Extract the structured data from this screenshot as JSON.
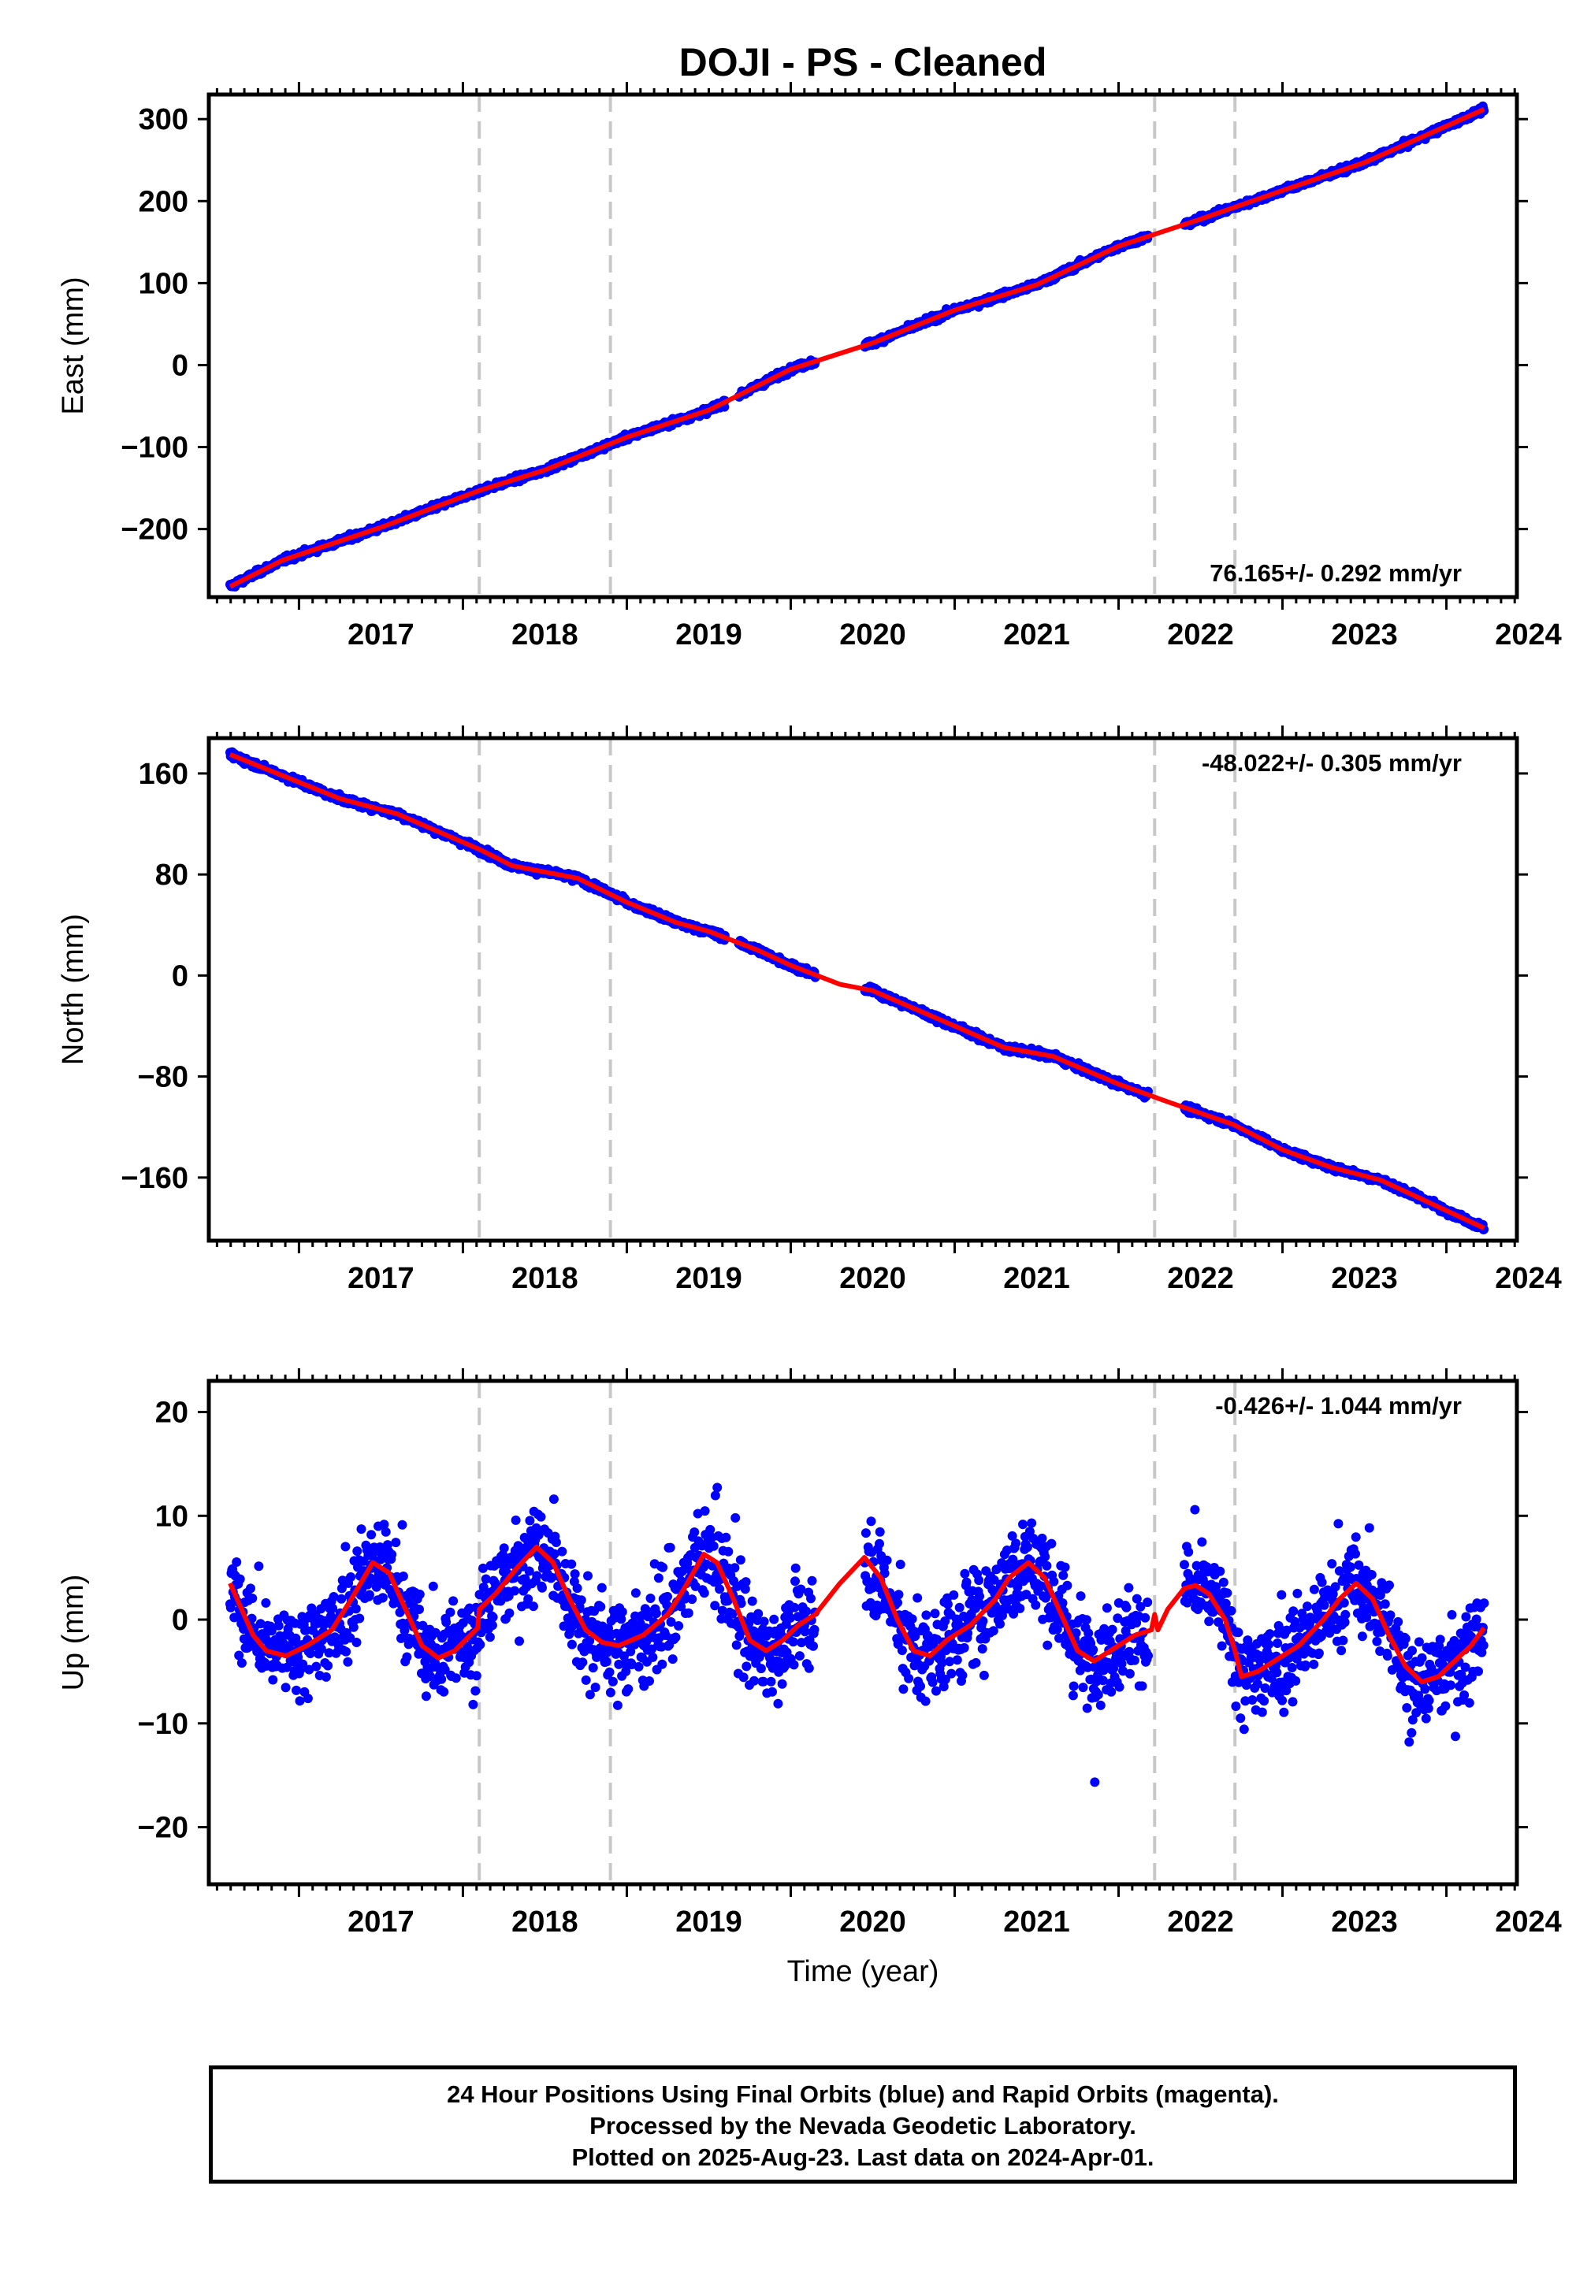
{
  "title": "DOJI  - PS - Cleaned",
  "xlabel": "Time (year)",
  "footer": {
    "line1": "24 Hour Positions Using Final Orbits (blue) and Rapid Orbits (magenta).",
    "line2": "Processed by the Nevada Geodetic Laboratory.",
    "line3": "Plotted on 2025-Aug-23. Last data on 2024-Apr-01."
  },
  "colors": {
    "data": "#0000ff",
    "fit": "#ff0000",
    "event_line": "#c8c8c8",
    "axis": "#000000"
  },
  "chart_data": [
    {
      "type": "scatter",
      "component": "East",
      "ylabel": "East (mm)",
      "velocity_label": "76.165+/- 0.292 mm/yr",
      "velocity_label_position": "bottom-right",
      "xlim": [
        2016.45,
        2024.43
      ],
      "ylim": [
        -283,
        330
      ],
      "yticks": [
        300,
        200,
        100,
        0,
        -100,
        -200
      ],
      "ytick_labels": [
        "300",
        "200",
        "100",
        "0",
        "−100",
        "−200"
      ],
      "xticks": [
        2017,
        2018,
        2019,
        2020,
        2021,
        2022,
        2023,
        2024
      ],
      "event_lines": [
        2018.1,
        2018.9,
        2022.22,
        2022.71
      ],
      "gaps": [
        [
          2019.6,
          2019.68
        ],
        [
          2020.15,
          2020.45
        ],
        [
          2022.18,
          2022.4
        ]
      ],
      "fit_breakpoints": [
        {
          "x": 2016.58,
          "y": -270
        },
        {
          "x": 2016.9,
          "y": -238
        },
        {
          "x": 2017.5,
          "y": -198
        },
        {
          "x": 2018.1,
          "y": -153
        },
        {
          "x": 2018.5,
          "y": -128
        },
        {
          "x": 2019.0,
          "y": -88
        },
        {
          "x": 2019.5,
          "y": -55
        },
        {
          "x": 2020.0,
          "y": -5
        },
        {
          "x": 2020.5,
          "y": 27
        },
        {
          "x": 2021.0,
          "y": 67
        },
        {
          "x": 2021.5,
          "y": 98
        },
        {
          "x": 2022.0,
          "y": 145
        },
        {
          "x": 2022.5,
          "y": 178
        },
        {
          "x": 2023.0,
          "y": 213
        },
        {
          "x": 2023.5,
          "y": 247
        },
        {
          "x": 2024.23,
          "y": 312
        }
      ],
      "noise_mm": 2.5,
      "seasonal_amp_mm": 0
    },
    {
      "type": "scatter",
      "component": "North",
      "ylabel": "North (mm)",
      "velocity_label": "-48.022+/- 0.305 mm/yr",
      "velocity_label_position": "top-right",
      "xlim": [
        2016.45,
        2024.43
      ],
      "ylim": [
        -210,
        188
      ],
      "yticks": [
        160,
        80,
        0,
        -80,
        -160
      ],
      "ytick_labels": [
        "160",
        "80",
        "0",
        "−80",
        "−160"
      ],
      "xticks": [
        2017,
        2018,
        2019,
        2020,
        2021,
        2022,
        2023,
        2024
      ],
      "event_lines": [
        2018.1,
        2018.9,
        2022.22,
        2022.71
      ],
      "gaps": [
        [
          2019.6,
          2019.68
        ],
        [
          2020.15,
          2020.45
        ],
        [
          2022.18,
          2022.4
        ]
      ],
      "fit_breakpoints": [
        {
          "x": 2016.58,
          "y": 175
        },
        {
          "x": 2017.25,
          "y": 140
        },
        {
          "x": 2017.6,
          "y": 128
        },
        {
          "x": 2018.1,
          "y": 100
        },
        {
          "x": 2018.3,
          "y": 87
        },
        {
          "x": 2018.7,
          "y": 77
        },
        {
          "x": 2019.0,
          "y": 58
        },
        {
          "x": 2019.3,
          "y": 42
        },
        {
          "x": 2019.5,
          "y": 35
        },
        {
          "x": 2019.8,
          "y": 20
        },
        {
          "x": 2020.0,
          "y": 8
        },
        {
          "x": 2020.3,
          "y": -7
        },
        {
          "x": 2020.5,
          "y": -12
        },
        {
          "x": 2021.0,
          "y": -40
        },
        {
          "x": 2021.3,
          "y": -57
        },
        {
          "x": 2021.6,
          "y": -64
        },
        {
          "x": 2022.0,
          "y": -86
        },
        {
          "x": 2022.3,
          "y": -100
        },
        {
          "x": 2022.7,
          "y": -118
        },
        {
          "x": 2023.0,
          "y": -138
        },
        {
          "x": 2023.3,
          "y": -152
        },
        {
          "x": 2023.6,
          "y": -162
        },
        {
          "x": 2024.23,
          "y": -200
        }
      ],
      "noise_mm": 1.8,
      "seasonal_amp_mm": 0
    },
    {
      "type": "scatter",
      "component": "Up",
      "ylabel": "Up (mm)",
      "velocity_label": "-0.426+/- 1.044 mm/yr",
      "velocity_label_position": "top-right",
      "xlim": [
        2016.45,
        2024.43
      ],
      "ylim": [
        -25.5,
        23
      ],
      "yticks": [
        20,
        10,
        0,
        -10,
        -20
      ],
      "ytick_labels": [
        "20",
        "10",
        "0",
        "−10",
        "−20"
      ],
      "xticks": [
        2017,
        2018,
        2019,
        2020,
        2021,
        2022,
        2023,
        2024
      ],
      "event_lines": [
        2018.1,
        2018.9,
        2022.22,
        2022.71
      ],
      "gaps": [
        [
          2020.15,
          2020.45
        ],
        [
          2022.18,
          2022.4
        ]
      ],
      "fit_points": [
        {
          "x": 2016.58,
          "y": 3.5
        },
        {
          "x": 2016.65,
          "y": 1
        },
        {
          "x": 2016.72,
          "y": -1.5
        },
        {
          "x": 2016.8,
          "y": -3
        },
        {
          "x": 2016.92,
          "y": -3.5
        },
        {
          "x": 2017.05,
          "y": -2.5
        },
        {
          "x": 2017.2,
          "y": -1
        },
        {
          "x": 2017.32,
          "y": 2
        },
        {
          "x": 2017.45,
          "y": 5.5
        },
        {
          "x": 2017.55,
          "y": 4.5
        },
        {
          "x": 2017.65,
          "y": 1
        },
        {
          "x": 2017.75,
          "y": -2.5
        },
        {
          "x": 2017.85,
          "y": -3.7
        },
        {
          "x": 2017.95,
          "y": -3
        },
        {
          "x": 2018.09,
          "y": -0.8
        },
        {
          "x": 2018.1,
          "y": 1
        },
        {
          "x": 2018.2,
          "y": 2.5
        },
        {
          "x": 2018.33,
          "y": 5
        },
        {
          "x": 2018.45,
          "y": 7
        },
        {
          "x": 2018.55,
          "y": 5.5
        },
        {
          "x": 2018.65,
          "y": 2
        },
        {
          "x": 2018.75,
          "y": -1
        },
        {
          "x": 2018.85,
          "y": -2.2
        },
        {
          "x": 2018.95,
          "y": -2.5
        },
        {
          "x": 2019.1,
          "y": -1.5
        },
        {
          "x": 2019.25,
          "y": 0.5
        },
        {
          "x": 2019.35,
          "y": 3
        },
        {
          "x": 2019.47,
          "y": 6.3
        },
        {
          "x": 2019.55,
          "y": 5.5
        },
        {
          "x": 2019.65,
          "y": 2
        },
        {
          "x": 2019.75,
          "y": -2
        },
        {
          "x": 2019.85,
          "y": -3
        },
        {
          "x": 2019.95,
          "y": -2
        },
        {
          "x": 2020.05,
          "y": -0.5
        },
        {
          "x": 2020.15,
          "y": 0.5
        },
        {
          "x": 2020.3,
          "y": 3.5
        },
        {
          "x": 2020.45,
          "y": 6
        },
        {
          "x": 2020.55,
          "y": 4
        },
        {
          "x": 2020.65,
          "y": 0
        },
        {
          "x": 2020.75,
          "y": -3
        },
        {
          "x": 2020.85,
          "y": -3.5
        },
        {
          "x": 2020.95,
          "y": -2
        },
        {
          "x": 2021.1,
          "y": -0.5
        },
        {
          "x": 2021.25,
          "y": 2
        },
        {
          "x": 2021.33,
          "y": 4
        },
        {
          "x": 2021.45,
          "y": 5.5
        },
        {
          "x": 2021.55,
          "y": 4
        },
        {
          "x": 2021.65,
          "y": 0.5
        },
        {
          "x": 2021.75,
          "y": -3
        },
        {
          "x": 2021.85,
          "y": -4
        },
        {
          "x": 2021.95,
          "y": -3
        },
        {
          "x": 2022.1,
          "y": -1.5
        },
        {
          "x": 2022.2,
          "y": -1
        },
        {
          "x": 2022.22,
          "y": 0.5
        },
        {
          "x": 2022.24,
          "y": -1
        },
        {
          "x": 2022.3,
          "y": 1
        },
        {
          "x": 2022.4,
          "y": 3
        },
        {
          "x": 2022.47,
          "y": 3.3
        },
        {
          "x": 2022.55,
          "y": 2.5
        },
        {
          "x": 2022.65,
          "y": 0
        },
        {
          "x": 2022.71,
          "y": -3
        },
        {
          "x": 2022.75,
          "y": -5.5
        },
        {
          "x": 2022.85,
          "y": -5
        },
        {
          "x": 2022.95,
          "y": -4
        },
        {
          "x": 2023.1,
          "y": -2.5
        },
        {
          "x": 2023.25,
          "y": 0
        },
        {
          "x": 2023.35,
          "y": 2
        },
        {
          "x": 2023.45,
          "y": 3.5
        },
        {
          "x": 2023.55,
          "y": 2
        },
        {
          "x": 2023.65,
          "y": -1.5
        },
        {
          "x": 2023.75,
          "y": -4.5
        },
        {
          "x": 2023.85,
          "y": -6
        },
        {
          "x": 2023.95,
          "y": -5.5
        },
        {
          "x": 2024.05,
          "y": -4
        },
        {
          "x": 2024.15,
          "y": -2.5
        },
        {
          "x": 2024.23,
          "y": -0.8
        }
      ],
      "noise_mm": 3.2
    }
  ]
}
